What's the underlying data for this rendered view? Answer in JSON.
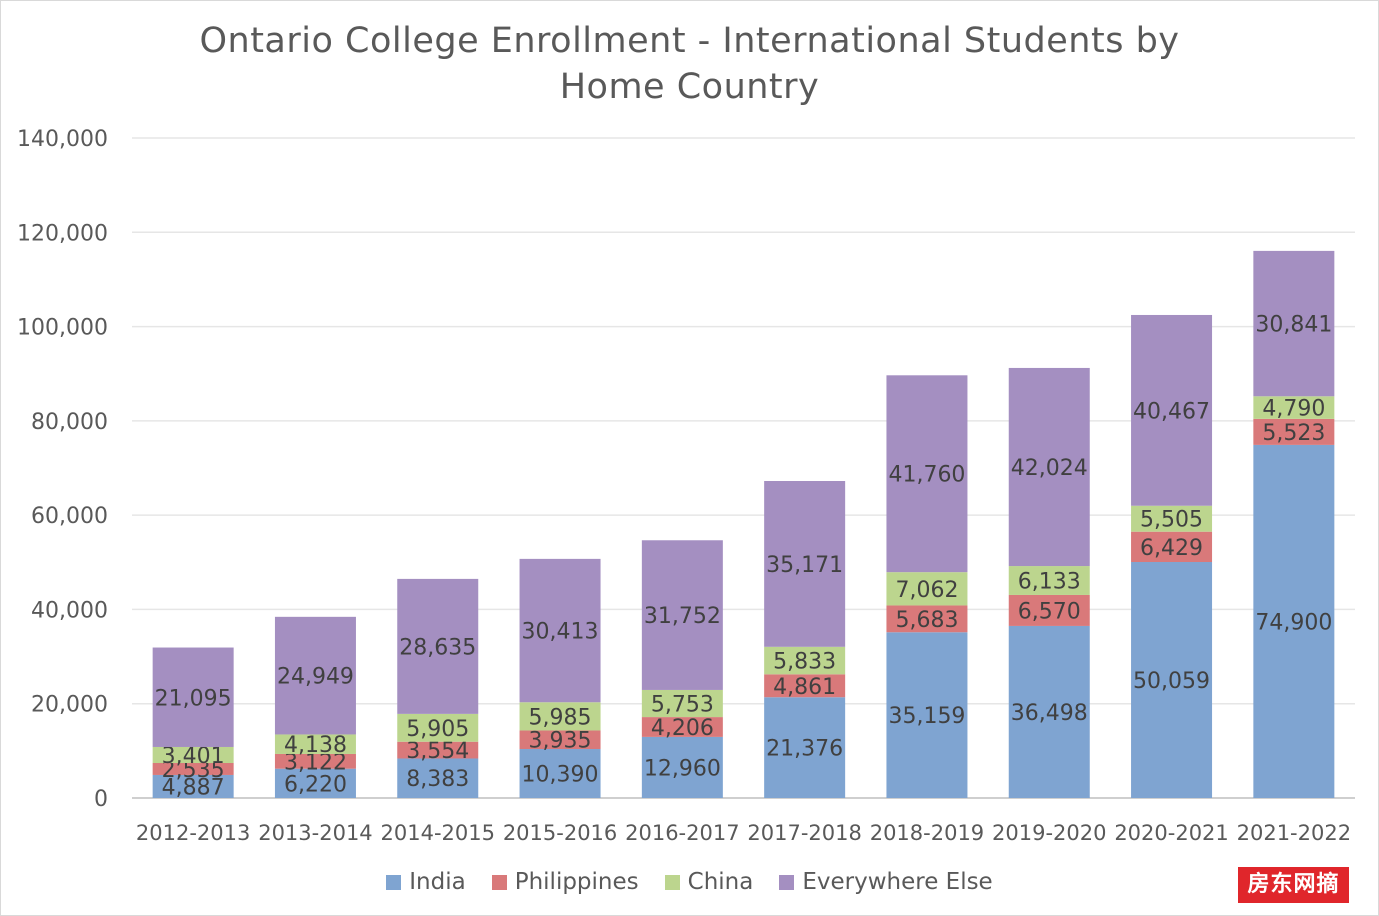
{
  "chart_data": {
    "type": "bar",
    "stacked": true,
    "title": "Ontario College Enrollment - International Students by Home Country",
    "title_lines": [
      "Ontario College Enrollment - International Students by",
      "Home Country"
    ],
    "categories": [
      "2012-2013",
      "2013-2014",
      "2014-2015",
      "2015-2016",
      "2016-2017",
      "2017-2018",
      "2018-2019",
      "2019-2020",
      "2020-2021",
      "2021-2022"
    ],
    "series": [
      {
        "name": "India",
        "color": "#7fa4d1",
        "values": [
          4887,
          6220,
          8383,
          10390,
          12960,
          21376,
          35159,
          36498,
          50059,
          74900
        ],
        "labels": [
          "4,887",
          "6,220",
          "8,383",
          "10,390",
          "12,960",
          "21,376",
          "35,159",
          "36,498",
          "50,059",
          "74,900"
        ]
      },
      {
        "name": "Philippines",
        "color": "#d9797a",
        "values": [
          2535,
          3122,
          3554,
          3935,
          4206,
          4861,
          5683,
          6570,
          6429,
          5523
        ],
        "labels": [
          "2,535",
          "3,122",
          "3,554",
          "3,935",
          "4,206",
          "4,861",
          "5,683",
          "6,570",
          "6,429",
          "5,523"
        ]
      },
      {
        "name": "China",
        "color": "#bcd58e",
        "values": [
          3401,
          4138,
          5905,
          5985,
          5753,
          5833,
          7062,
          6133,
          5505,
          4790
        ],
        "labels": [
          "3,401",
          "4,138",
          "5,905",
          "5,985",
          "5,753",
          "5,833",
          "7,062",
          "6,133",
          "5,505",
          "4,790"
        ]
      },
      {
        "name": "Everywhere Else",
        "color": "#a48fc1",
        "values": [
          21095,
          24949,
          28635,
          30413,
          31752,
          35171,
          41760,
          42024,
          40467,
          30841
        ],
        "labels": [
          "21,095",
          "24,949",
          "28,635",
          "30,413",
          "31,752",
          "35,171",
          "41,760",
          "42,024",
          "40,467",
          "30,841"
        ]
      }
    ],
    "ylim": [
      0,
      140000
    ],
    "yticks": [
      0,
      20000,
      40000,
      60000,
      80000,
      100000,
      120000,
      140000
    ],
    "ytick_labels": [
      "0",
      "20,000",
      "40,000",
      "60,000",
      "80,000",
      "100,000",
      "120,000",
      "140,000"
    ],
    "grid": true,
    "legend_position": "bottom"
  },
  "colors": {
    "gridline": "#e6e6e6",
    "axis": "#bfbfbf",
    "text": "#595959",
    "data_label": "#404040"
  },
  "watermark": "房东网摘"
}
